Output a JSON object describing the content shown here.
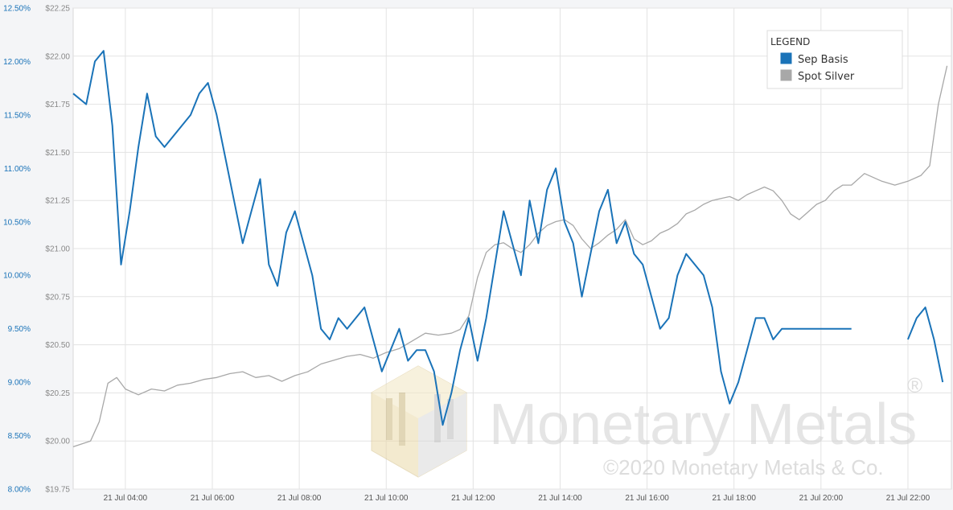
{
  "chart_data": {
    "type": "line",
    "left_axis": {
      "ticks": [
        "12.50%",
        "12.00%",
        "11.50%",
        "11.00%",
        "10.50%",
        "10.00%",
        "9.50%",
        "9.00%",
        "8.50%",
        "8.00%"
      ],
      "range": [
        8.0,
        12.5
      ],
      "color": "#1a73b8"
    },
    "right_axis": {
      "ticks": [
        "$22.25",
        "$22.00",
        "$21.75",
        "$21.50",
        "$21.25",
        "$21.00",
        "$20.75",
        "$20.50",
        "$20.25",
        "$20.00",
        "$19.75"
      ],
      "range": [
        19.75,
        22.25
      ],
      "color": "#888888"
    },
    "x_ticks": [
      "21 Jul 04:00",
      "21 Jul 06:00",
      "21 Jul 08:00",
      "21 Jul 10:00",
      "21 Jul 12:00",
      "21 Jul 14:00",
      "21 Jul 16:00",
      "21 Jul 18:00",
      "21 Jul 20:00",
      "21 Jul 22:00"
    ],
    "x_tick_hours": [
      4,
      6,
      8,
      10,
      12,
      14,
      16,
      18,
      20,
      22
    ],
    "x_range_hours": [
      2.8,
      23.0
    ],
    "grid": true,
    "legend": {
      "title": "LEGEND",
      "placement": "top-right",
      "items": [
        {
          "label": "Sep Basis",
          "color": "#1a73b8"
        },
        {
          "label": "Spot Silver",
          "color": "#a8a8a8"
        }
      ]
    },
    "series": [
      {
        "name": "Sep Basis",
        "axis": "left",
        "color": "#1a73b8",
        "x": [
          2.8,
          3.1,
          3.3,
          3.5,
          3.7,
          3.9,
          4.1,
          4.3,
          4.5,
          4.7,
          4.9,
          5.1,
          5.3,
          5.5,
          5.7,
          5.9,
          6.1,
          6.3,
          6.5,
          6.7,
          6.9,
          7.1,
          7.3,
          7.5,
          7.7,
          7.9,
          8.1,
          8.3,
          8.5,
          8.7,
          8.9,
          9.1,
          9.3,
          9.5,
          9.7,
          9.9,
          10.1,
          10.3,
          10.5,
          10.7,
          10.9,
          11.1,
          11.3,
          11.5,
          11.7,
          11.9,
          12.1,
          12.3,
          12.5,
          12.7,
          12.9,
          13.1,
          13.3,
          13.5,
          13.7,
          13.9,
          14.1,
          14.3,
          14.5,
          14.7,
          14.9,
          15.1,
          15.3,
          15.5,
          15.7,
          15.9,
          16.1,
          16.3,
          16.5,
          16.7,
          16.9,
          17.1,
          17.3,
          17.5,
          17.7,
          17.9,
          18.1,
          18.3,
          18.5,
          18.7,
          18.9,
          19.1,
          19.3,
          19.5,
          19.7,
          19.9,
          20.1,
          20.3,
          20.5,
          20.7
        ],
        "values": [
          11.7,
          11.6,
          12.0,
          12.1,
          11.4,
          10.1,
          10.6,
          11.2,
          11.7,
          11.3,
          11.2,
          11.3,
          11.4,
          11.5,
          11.7,
          11.8,
          11.5,
          11.1,
          10.7,
          10.3,
          10.6,
          10.9,
          10.1,
          9.9,
          10.4,
          10.6,
          10.3,
          10.0,
          9.5,
          9.4,
          9.6,
          9.5,
          9.6,
          9.7,
          9.4,
          9.1,
          9.3,
          9.5,
          9.2,
          9.3,
          9.3,
          9.1,
          8.6,
          8.9,
          9.3,
          9.6,
          9.2,
          9.6,
          10.1,
          10.6,
          10.3,
          10.0,
          10.7,
          10.3,
          10.8,
          11.0,
          10.5,
          10.3,
          9.8,
          10.2,
          10.6,
          10.8,
          10.3,
          10.5,
          10.2,
          10.1,
          9.8,
          9.5,
          9.6,
          10.0,
          10.2,
          10.1,
          10.0,
          9.7,
          9.1,
          8.8,
          9.0,
          9.3,
          9.6,
          9.6,
          9.4,
          9.5,
          9.5,
          9.5,
          9.5,
          9.5,
          9.5,
          9.5,
          9.5,
          9.5
        ]
      },
      {
        "name": "Sep Basis",
        "axis": "left",
        "color": "#1a73b8",
        "x": [
          22.0,
          22.2,
          22.4,
          22.6,
          22.8
        ],
        "values": [
          9.4,
          9.6,
          9.7,
          9.4,
          9.0
        ]
      },
      {
        "name": "Spot Silver",
        "axis": "right",
        "color": "#a8a8a8",
        "x": [
          2.8,
          3.2,
          3.4,
          3.6,
          3.8,
          4.0,
          4.3,
          4.6,
          4.9,
          5.2,
          5.5,
          5.8,
          6.1,
          6.4,
          6.7,
          7.0,
          7.3,
          7.6,
          7.9,
          8.2,
          8.5,
          8.8,
          9.1,
          9.4,
          9.7,
          10.0,
          10.3,
          10.6,
          10.9,
          11.2,
          11.5,
          11.7,
          11.9,
          12.1,
          12.3,
          12.5,
          12.7,
          12.9,
          13.1,
          13.3,
          13.5,
          13.7,
          13.9,
          14.1,
          14.3,
          14.5,
          14.7,
          14.9,
          15.1,
          15.3,
          15.5,
          15.7,
          15.9,
          16.1,
          16.3,
          16.5,
          16.7,
          16.9,
          17.1,
          17.3,
          17.5,
          17.7,
          17.9,
          18.1,
          18.3,
          18.5,
          18.7,
          18.9,
          19.1,
          19.3,
          19.5,
          19.7,
          19.9,
          20.1,
          20.3,
          20.5,
          20.7,
          21.0,
          21.4,
          21.7,
          22.0,
          22.3,
          22.5,
          22.7,
          22.9
        ],
        "values": [
          19.97,
          20.0,
          20.1,
          20.3,
          20.33,
          20.27,
          20.24,
          20.27,
          20.26,
          20.29,
          20.3,
          20.32,
          20.33,
          20.35,
          20.36,
          20.33,
          20.34,
          20.31,
          20.34,
          20.36,
          20.4,
          20.42,
          20.44,
          20.45,
          20.43,
          20.46,
          20.48,
          20.52,
          20.56,
          20.55,
          20.56,
          20.58,
          20.65,
          20.85,
          20.98,
          21.02,
          21.03,
          21.0,
          20.98,
          21.02,
          21.08,
          21.12,
          21.14,
          21.15,
          21.12,
          21.05,
          21.0,
          21.03,
          21.07,
          21.1,
          21.15,
          21.05,
          21.02,
          21.04,
          21.08,
          21.1,
          21.13,
          21.18,
          21.2,
          21.23,
          21.25,
          21.26,
          21.27,
          21.25,
          21.28,
          21.3,
          21.32,
          21.3,
          21.25,
          21.18,
          21.15,
          21.19,
          21.23,
          21.25,
          21.3,
          21.33,
          21.33,
          21.39,
          21.35,
          21.33,
          21.35,
          21.38,
          21.43,
          21.75,
          21.95
        ]
      }
    ]
  },
  "watermark": {
    "brand": "Monetary Metals",
    "registered": "®",
    "copyright": "©2020 Monetary Metals & Co."
  }
}
